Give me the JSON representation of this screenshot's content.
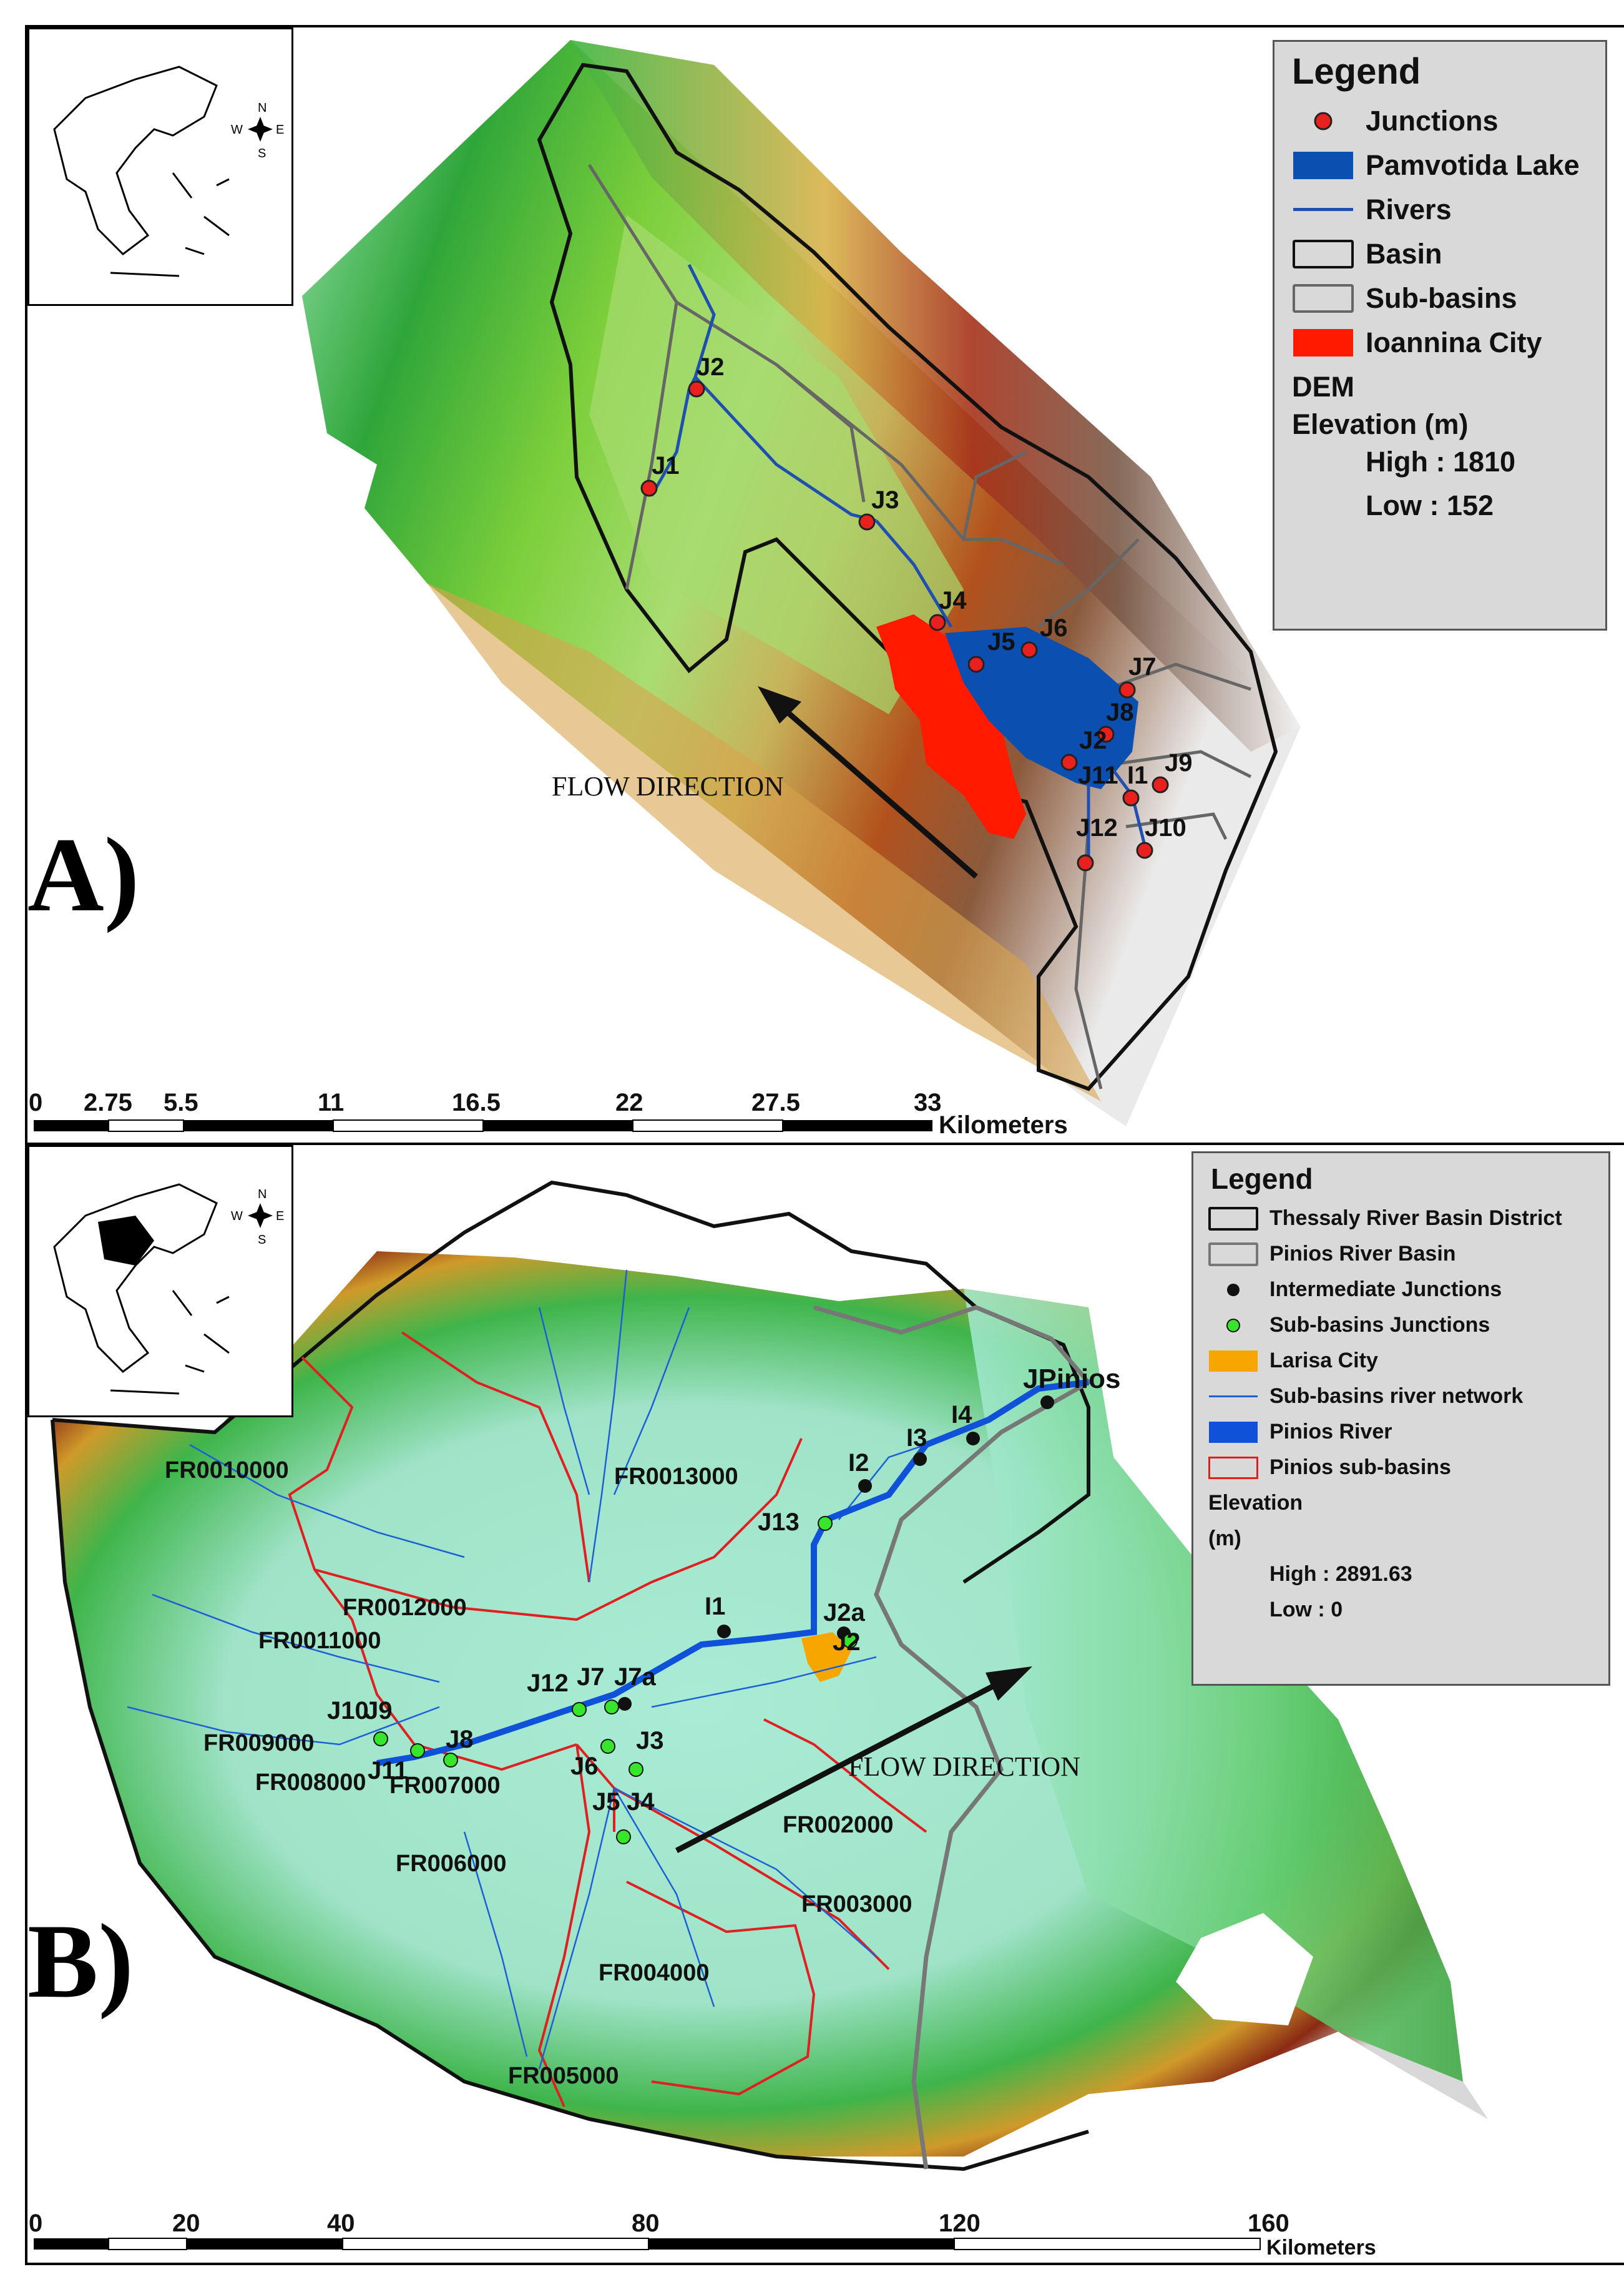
{
  "panelA": {
    "label": "A)",
    "flow_direction": "FLOW DIRECTION",
    "legend": {
      "title": "Legend",
      "items": [
        {
          "label": "Junctions",
          "symbol": "red-dot"
        },
        {
          "label": "Pamvotida Lake",
          "symbol": "blue-fill"
        },
        {
          "label": "Rivers",
          "symbol": "blue-line"
        },
        {
          "label": "Basin",
          "symbol": "black-outline"
        },
        {
          "label": "Sub-basins",
          "symbol": "gray-outline"
        },
        {
          "label": "Ioannina City",
          "symbol": "red-fill"
        }
      ],
      "dem_title": "DEM",
      "elevation_title": "Elevation (m)",
      "high": "High : 1810",
      "low": "Low : 152"
    },
    "junctions": [
      "J1",
      "J2",
      "J3",
      "J4",
      "J5",
      "J6",
      "J7",
      "J8",
      "J2",
      "J9",
      "J11",
      "I1",
      "J12",
      "J10"
    ],
    "scalebar": {
      "ticks": [
        "0",
        "2.75",
        "5.5",
        "11",
        "16.5",
        "22",
        "27.5",
        "33"
      ],
      "unit": "Kilometers"
    },
    "compass": {
      "n": "N",
      "s": "S",
      "e": "E",
      "w": "W"
    }
  },
  "panelB": {
    "label": "B)",
    "flow_direction": "FLOW DIRECTION",
    "legend": {
      "title": "Legend",
      "items": [
        {
          "label": "Thessaly River Basin District",
          "symbol": "black-outline"
        },
        {
          "label": "Pinios River Basin",
          "symbol": "gray-outline"
        },
        {
          "label": "Intermediate Junctions",
          "symbol": "black-dot"
        },
        {
          "label": "Sub-basins Junctions",
          "symbol": "green-dot"
        },
        {
          "label": "Larisa City",
          "symbol": "orange-fill"
        },
        {
          "label": "Sub-basins river network",
          "symbol": "thin-blue-line"
        },
        {
          "label": "Pinios River",
          "symbol": "blue-fill"
        },
        {
          "label": "Pinios sub-basins",
          "symbol": "red-outline"
        }
      ],
      "elevation_title": "Elevation",
      "unit": "(m)",
      "high": "High : 2891.63",
      "low": "Low : 0"
    },
    "subbasins": [
      "FR0010000",
      "FR0013000",
      "FR0012000",
      "FR0011000",
      "FR009000",
      "FR008000",
      "FR007000",
      "FR006000",
      "FR002000",
      "FR003000",
      "FR004000",
      "FR005000"
    ],
    "junctions": [
      "JPinios",
      "I4",
      "I3",
      "I2",
      "J13",
      "I1",
      "J2a",
      "J2",
      "J12",
      "J7",
      "J7a",
      "J10",
      "J9",
      "J11",
      "J8",
      "J6",
      "J3",
      "J5",
      "J4"
    ],
    "scalebar": {
      "ticks": [
        "0",
        "20",
        "40",
        "80",
        "120",
        "160"
      ],
      "unit": "Kilometers"
    },
    "compass": {
      "n": "N",
      "s": "S",
      "e": "E",
      "w": "W"
    }
  },
  "colors": {
    "junction_red": "#e8211f",
    "lake_blue": "#0b4fb0",
    "river_blue": "#1f4fb0",
    "city_red": "#ff1a00",
    "larisa_orange": "#f7a600",
    "subbasin_junction_green": "#37e52b",
    "legend_bg": "#d9d9d9"
  }
}
